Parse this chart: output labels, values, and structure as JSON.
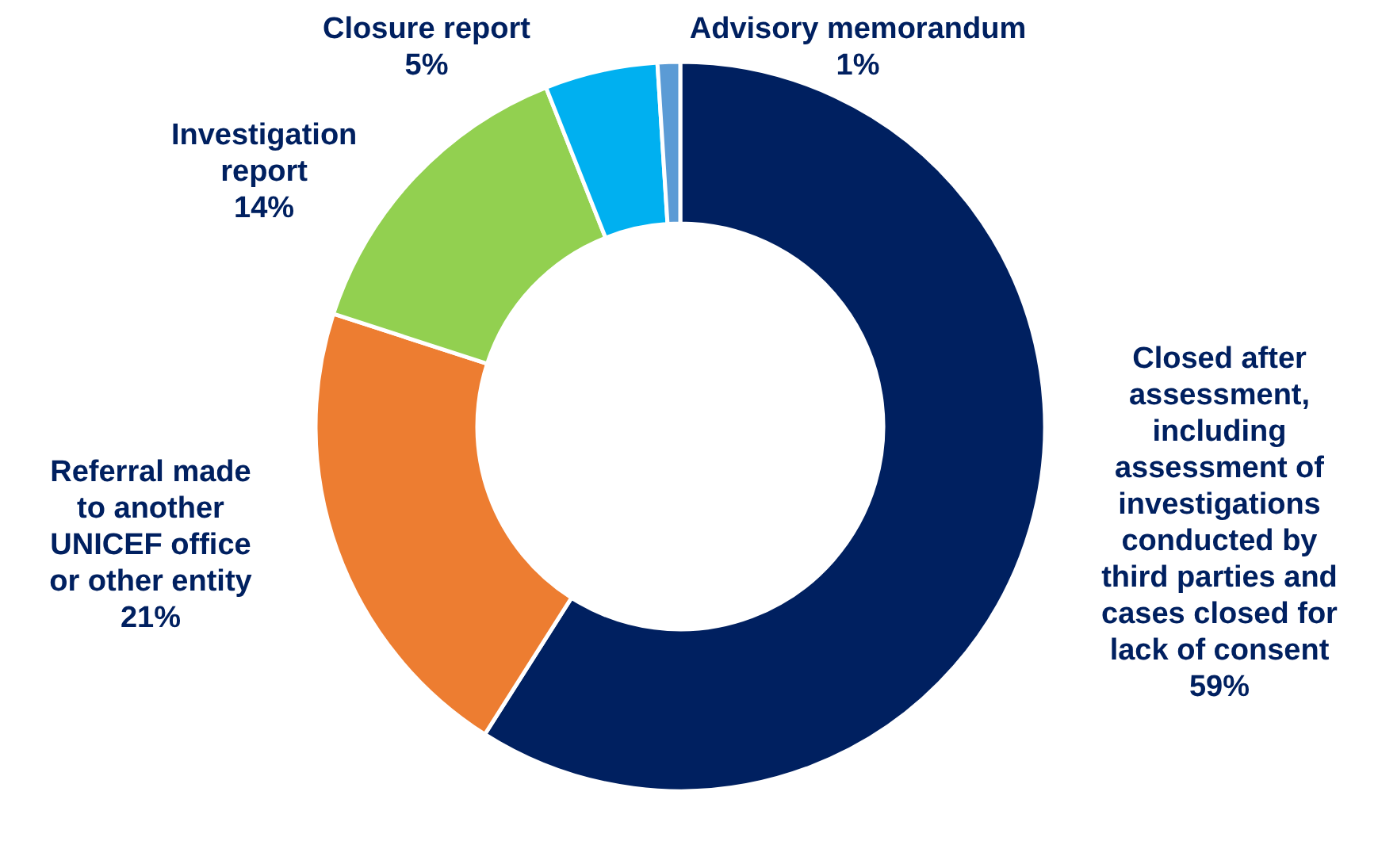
{
  "chart_data": {
    "type": "donut",
    "categories": [
      "Closed after assessment, including assessment of investigations conducted by third parties and cases closed for lack of consent",
      "Referral made to another UNICEF office or other entity",
      "Investigation report",
      "Closure report",
      "Advisory memorandum"
    ],
    "values": [
      59,
      21,
      14,
      5,
      1
    ],
    "value_labels": [
      "59%",
      "21%",
      "14%",
      "5%",
      "1%"
    ],
    "colors": [
      "#002060",
      "#ed7d31",
      "#92d050",
      "#00b0f0",
      "#5b9bd5"
    ]
  }
}
